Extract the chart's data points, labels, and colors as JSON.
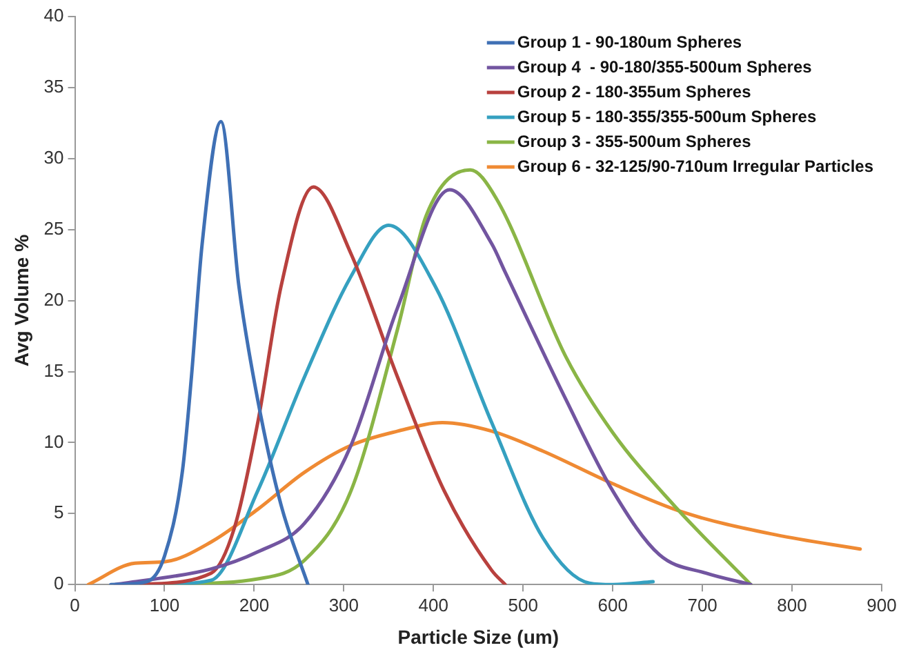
{
  "chart_data": {
    "type": "line",
    "xlabel": "Particle Size (um)",
    "ylabel": "Avg Volume %",
    "xlim": [
      0,
      900
    ],
    "xticks": [
      0,
      100,
      200,
      300,
      400,
      500,
      600,
      700,
      800,
      900
    ],
    "ylim": [
      0,
      40
    ],
    "yticks": [
      0,
      5,
      10,
      15,
      20,
      25,
      30,
      35,
      40
    ],
    "grid": false,
    "legend": "top right",
    "marker": "none",
    "line_style": "solid",
    "series": [
      {
        "name": "Group 1 - 90-180um Spheres",
        "color": "#3f70b5",
        "x": [
          40,
          80,
          100,
          120,
          130,
          142,
          163,
          183,
          204,
          230,
          260
        ],
        "values": [
          0,
          0.2,
          2,
          8,
          14.6,
          24,
          32.6,
          21,
          13,
          5.6,
          0
        ]
      },
      {
        "name": "Group 4  - 90-180/355-500um Spheres",
        "color": "#7255a0",
        "x": [
          45,
          152,
          204,
          256,
          308,
          360,
          418,
          465,
          480,
          548,
          600,
          652,
          704,
          754
        ],
        "values": [
          0,
          1.1,
          2.3,
          4.3,
          9.8,
          19.5,
          27.8,
          24,
          22,
          13,
          6.6,
          2.1,
          0.8,
          0
        ]
      },
      {
        "name": "Group 2 - 180-355um Spheres",
        "color": "#b8413e",
        "x": [
          74,
          152,
          178,
          204,
          230,
          266,
          308,
          360,
          412,
          465,
          480
        ],
        "values": [
          0,
          0.8,
          4,
          11.4,
          21,
          28,
          23.3,
          14.6,
          6.6,
          1,
          0
        ]
      },
      {
        "name": "Group 5 - 180-355/355-500um Spheres",
        "color": "#35a0c0",
        "x": [
          90,
          152,
          204,
          256,
          308,
          350,
          402,
          465,
          522,
          574,
          600,
          645
        ],
        "values": [
          0,
          0.3,
          6.6,
          14.6,
          21.7,
          25.3,
          21,
          11.4,
          3.3,
          0.1,
          0,
          0.2
        ]
      },
      {
        "name": "Group 3 - 355-500um Spheres",
        "color": "#8ab546",
        "x": [
          100,
          204,
          256,
          308,
          360,
          392,
          441,
          470,
          548,
          600,
          668,
          754
        ],
        "values": [
          0,
          0.4,
          1.7,
          6.6,
          18,
          26,
          29.2,
          27.2,
          16,
          10.7,
          5.6,
          0
        ]
      },
      {
        "name": "Group 6 - 32-125/90-710um Irregular Particles",
        "color": "#ef8a33",
        "x": [
          15,
          67,
          100,
          152,
          204,
          256,
          308,
          360,
          410,
          465,
          522,
          600,
          678,
          782,
          876
        ],
        "values": [
          0,
          1.5,
          1.6,
          3,
          5.3,
          7.9,
          9.8,
          10.8,
          11.4,
          10.8,
          9.4,
          7.1,
          5.1,
          3.5,
          2.5
        ]
      }
    ]
  }
}
